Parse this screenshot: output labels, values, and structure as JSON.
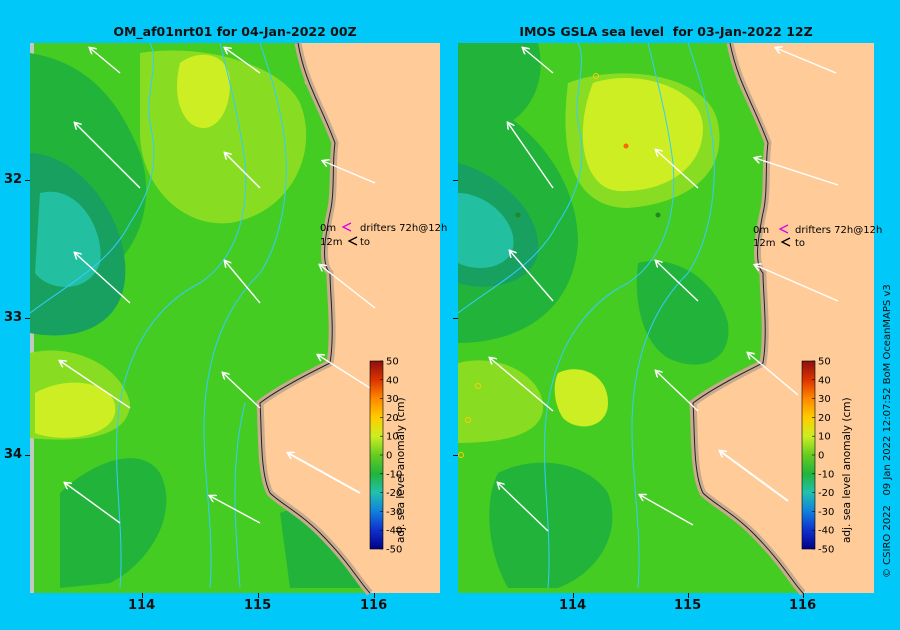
{
  "left_panel": {
    "title": "OM_af01nrt01 for 04-Jan-2022 00Z",
    "legend": {
      "line1_depth": "0m",
      "line1_text": "drifters 72h@12h",
      "line2_depth": "12m",
      "line2_text": "to"
    },
    "colorbar_label": "adj. sea level anomaly (cm)"
  },
  "right_panel": {
    "title": "IMOS GSLA sea level  for 03-Jan-2022 12Z",
    "legend": {
      "line1_depth": "0m",
      "line1_text": "drifters 72h@12h",
      "line2_depth": "12m",
      "line2_text": "to"
    },
    "colorbar_label": "adj. sea level anomaly (cm)"
  },
  "colorbar_ticks": [
    "50",
    "40",
    "30",
    "20",
    "10",
    "0",
    "-10",
    "-20",
    "-30",
    "-40",
    "-50"
  ],
  "y_ticks": [
    "32",
    "33",
    "34"
  ],
  "x_ticks": [
    "114",
    "115",
    "116"
  ],
  "credit": "© CSIRO 2022   09 Jan 2022 12:07:52 BoM OceanMAPS v3",
  "colors": {
    "background": "#00c8f8",
    "land": "#ffcc99",
    "coast": "#c8ab8e",
    "legend_arrow_0m": "#e000e0",
    "legend_arrow_12m": "#000000"
  }
}
